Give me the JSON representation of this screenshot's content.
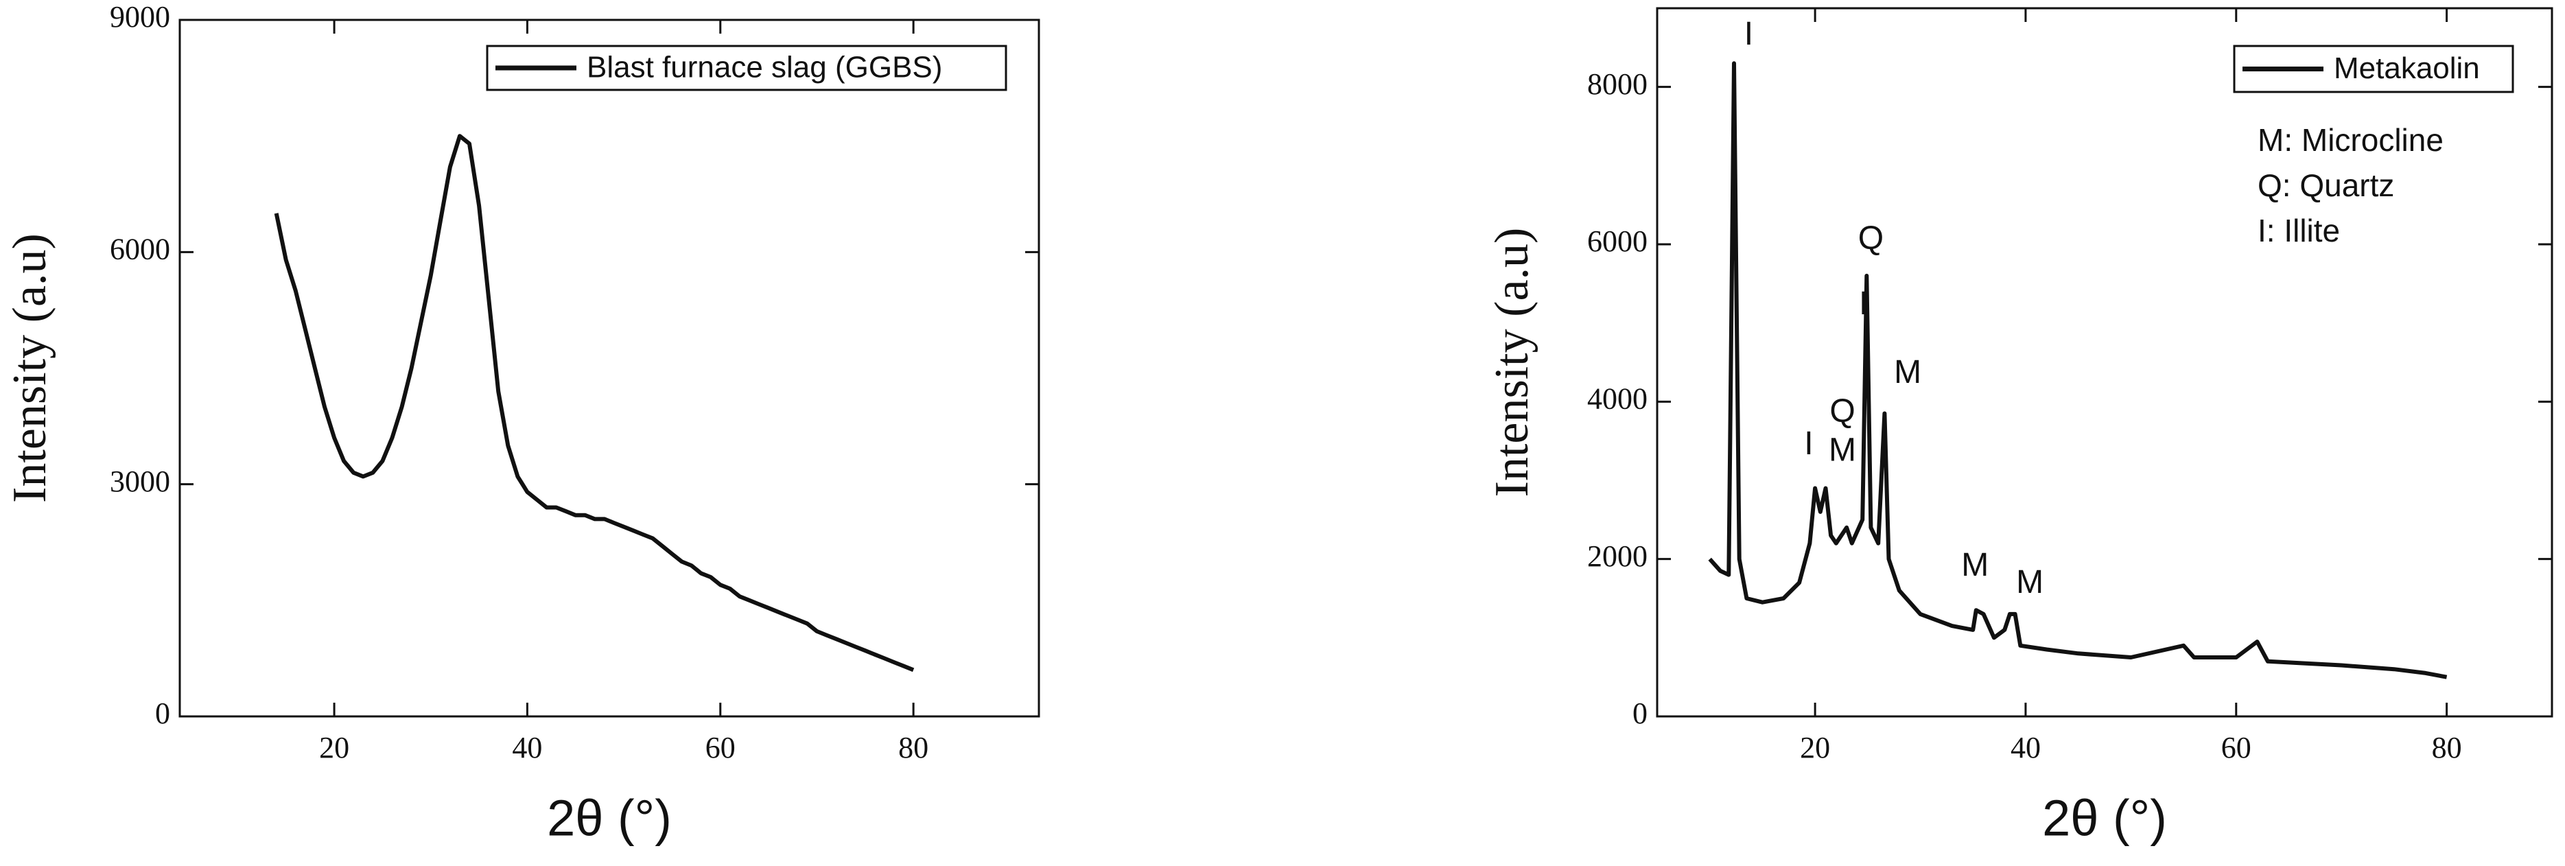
{
  "chart_data": [
    {
      "type": "line",
      "x_label": "2θ (°)",
      "y_label": "Intensity (a.u)",
      "x": [
        14,
        15,
        16,
        17,
        18,
        19,
        20,
        21,
        22,
        23,
        24,
        25,
        26,
        27,
        28,
        29,
        30,
        31,
        32,
        33,
        34,
        35,
        36,
        37,
        38,
        39,
        40,
        41,
        42,
        43,
        44,
        45,
        46,
        47,
        48,
        49,
        50,
        51,
        52,
        53,
        54,
        55,
        56,
        57,
        58,
        59,
        60,
        61,
        62,
        63,
        64,
        65,
        66,
        67,
        68,
        69,
        70,
        71,
        72,
        73,
        74,
        75,
        76,
        77,
        78,
        79,
        80
      ],
      "series": [
        {
          "name": "Blast furnace slag (GGBS)",
          "color": "#111111",
          "values": [
            6500,
            5900,
            5500,
            5000,
            4500,
            4000,
            3600,
            3300,
            3150,
            3100,
            3150,
            3300,
            3600,
            4000,
            4500,
            5100,
            5700,
            6400,
            7100,
            7500,
            7400,
            6600,
            5400,
            4200,
            3500,
            3100,
            2900,
            2800,
            2700,
            2700,
            2650,
            2600,
            2600,
            2550,
            2550,
            2500,
            2450,
            2400,
            2350,
            2300,
            2200,
            2100,
            2000,
            1950,
            1850,
            1800,
            1700,
            1650,
            1550,
            1500,
            1450,
            1400,
            1350,
            1300,
            1250,
            1200,
            1100,
            1050,
            1000,
            950,
            900,
            850,
            800,
            750,
            700,
            650,
            600
          ]
        }
      ],
      "xlim": [
        4,
        93
      ],
      "ylim": [
        0,
        9000
      ],
      "xticks": [
        20,
        40,
        60,
        80
      ],
      "yticks": [
        0,
        3000,
        6000,
        9000
      ]
    },
    {
      "type": "line",
      "x_label": "2θ (°)",
      "y_label": "Intensity (a.u)",
      "x": [
        10,
        11,
        11.8,
        12.3,
        12.8,
        13.5,
        15,
        17,
        18.5,
        19.5,
        20,
        20.5,
        21,
        21.5,
        22,
        23,
        23.5,
        24.5,
        24.9,
        25.3,
        26,
        26.6,
        27,
        28,
        30,
        33,
        35,
        35.3,
        36,
        37,
        38,
        38.5,
        39,
        39.5,
        42,
        45,
        50,
        55,
        56,
        60,
        62,
        63,
        70,
        75,
        78,
        80
      ],
      "series": [
        {
          "name": "Metakaolin",
          "color": "#111111",
          "values": [
            2000,
            1850,
            1800,
            8300,
            2000,
            1500,
            1450,
            1500,
            1700,
            2200,
            2900,
            2600,
            2900,
            2300,
            2200,
            2400,
            2200,
            2500,
            5600,
            2400,
            2200,
            3850,
            2000,
            1600,
            1300,
            1150,
            1100,
            1350,
            1300,
            1000,
            1100,
            1300,
            1300,
            900,
            850,
            800,
            750,
            900,
            750,
            750,
            950,
            700,
            650,
            600,
            550,
            500
          ]
        }
      ],
      "xlim": [
        5,
        90
      ],
      "ylim": [
        0,
        9000
      ],
      "xticks": [
        20,
        40,
        60,
        80
      ],
      "yticks": [
        0,
        2000,
        4000,
        6000,
        8000
      ],
      "annotations": [
        "I",
        "Q",
        "I",
        "M",
        "Q",
        "I",
        "M",
        "M",
        "M"
      ],
      "notes": [
        "M: Microcline",
        "Q: Quartz",
        "I: Illite"
      ]
    }
  ]
}
